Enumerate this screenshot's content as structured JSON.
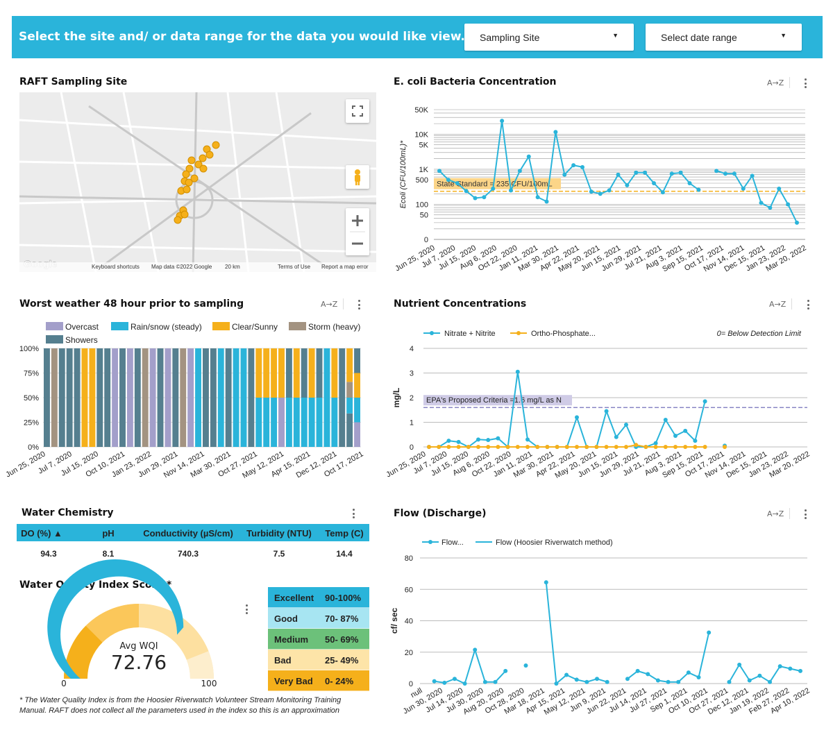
{
  "banner": {
    "prompt": "Select the site and/ or data range for the data you would like view.",
    "site_dropdown": "Sampling Site",
    "date_dropdown": "Select date range"
  },
  "map_panel": {
    "title": "RAFT Sampling Site",
    "attribution": [
      "Keyboard shortcuts",
      "Map data ©2022 Google",
      "20 km",
      "Terms of Use",
      "Report a map error"
    ],
    "logo": "Google",
    "icons": [
      "fullscreen-icon",
      "pegman-icon",
      "zoom-in-icon",
      "zoom-out-icon"
    ]
  },
  "ecoli": {
    "title": "E. coli Bacteria Concentration",
    "sort_icon": "A→Z",
    "chart_data": {
      "type": "line",
      "ylabel": "Ecoli (CFU/100mL)*",
      "y_scale": "log",
      "y_ticks": [
        "50K",
        "10K",
        "5K",
        "1K",
        "500",
        "100",
        "50",
        "0"
      ],
      "x_ticks": [
        "Jun 25, 2020",
        "Jul 7, 2020",
        "Jul 15, 2020",
        "Aug 6, 2020",
        "Oct 22, 2020",
        "Jan 11, 2021",
        "Mar 30, 2021",
        "Apr 22, 2021",
        "May 20, 2021",
        "Jun 15, 2021",
        "Jun 29, 2021",
        "Jul 21, 2021",
        "Aug 3, 2021",
        "Sep 15, 2021",
        "Oct 17, 2021",
        "Nov 14, 2021",
        "Dec 15, 2021",
        "Jan 23, 2022",
        "Mar 20, 2022"
      ],
      "reference_label": "State Standard = 235 CFU/100mL",
      "reference_value": 235,
      "series": [
        {
          "values": [
            900,
            500,
            400,
            240,
            150,
            160,
            280,
            24000,
            250,
            900,
            2300,
            160,
            120,
            11500,
            700,
            1300,
            1150,
            230,
            200,
            250,
            700,
            350,
            800,
            800,
            400,
            220,
            750,
            800,
            400,
            260,
            null,
            900,
            750,
            750,
            280,
            650,
            110,
            80,
            280,
            100,
            30
          ]
        }
      ]
    }
  },
  "weather": {
    "title": "Worst weather 48 hour prior to sampling",
    "sort_icon": "A→Z",
    "legend": [
      {
        "label": "Overcast",
        "color": "#a39fca"
      },
      {
        "label": "Rain/snow (steady)",
        "color": "#2ab4da"
      },
      {
        "label": "Clear/Sunny",
        "color": "#f5b01b"
      },
      {
        "label": "Storm (heavy)",
        "color": "#a39381"
      },
      {
        "label": "Showers",
        "color": "#557f8f"
      }
    ],
    "chart_data": {
      "type": "bar",
      "stacked": true,
      "y_ticks": [
        "100%",
        "75%",
        "50%",
        "25%",
        "0%"
      ],
      "x_ticks": [
        "Jun 25, 2020",
        "Jul 7, 2020",
        "Jul 15, 2020",
        "Oct 10, 2021",
        "Jan 23, 2022",
        "Jun 29, 2021",
        "Nov 14, 2021",
        "Mar 30, 2021",
        "Oct 27, 2021",
        "May 12, 2021",
        "Apr 15, 2021",
        "Dec 12, 2021",
        "Oct 17, 2021"
      ],
      "bars": [
        "Showers",
        "Storm (heavy)",
        "Showers",
        "Showers",
        "Showers",
        "Clear/Sunny",
        "Clear/Sunny",
        "Showers",
        "Showers",
        "Overcast",
        "Showers",
        "Overcast",
        "Showers",
        "Storm (heavy)",
        "Overcast",
        "Showers",
        "Overcast",
        "Showers",
        "Storm (heavy)",
        "Overcast",
        "Rain/snow (steady)",
        "Showers",
        "Showers",
        "Rain/snow (steady)",
        "Showers",
        "Rain/snow (steady)",
        "Rain/snow (steady)",
        "Showers",
        "Clear/Sunny",
        "Rain/snow (steady)",
        "Clear/Sunny",
        "Rain/snow (steady)",
        "Rain/snow (steady)",
        "Overcast",
        "Rain/snow (steady)",
        "Rain/snow (steady)",
        "Rain/snow (steady)",
        "Rain/snow (steady)",
        "Showers",
        "Showers",
        "Rain/snow (steady)",
        "Rain/snow (steady)"
      ],
      "mixed_bars": [
        {
          "index": 28,
          "stack": [
            {
              "c": "Rain/snow (steady)",
              "v": 50
            },
            {
              "c": "Clear/Sunny",
              "v": 50
            }
          ]
        },
        {
          "index": 29,
          "stack": [
            {
              "c": "Rain/snow (steady)",
              "v": 50
            },
            {
              "c": "Clear/Sunny",
              "v": 50
            }
          ]
        },
        {
          "index": 30,
          "stack": [
            {
              "c": "Rain/snow (steady)",
              "v": 50
            },
            {
              "c": "Clear/Sunny",
              "v": 50
            }
          ]
        },
        {
          "index": 31,
          "stack": [
            {
              "c": "Overcast",
              "v": 50
            },
            {
              "c": "Clear/Sunny",
              "v": 50
            }
          ]
        },
        {
          "index": 32,
          "stack": [
            {
              "c": "Rain/snow (steady)",
              "v": 50
            },
            {
              "c": "Showers",
              "v": 50
            }
          ]
        },
        {
          "index": 33,
          "stack": [
            {
              "c": "Rain/snow (steady)",
              "v": 50
            },
            {
              "c": "Clear/Sunny",
              "v": 50
            }
          ]
        },
        {
          "index": 34,
          "stack": [
            {
              "c": "Rain/snow (steady)",
              "v": 50
            },
            {
              "c": "Showers",
              "v": 50
            }
          ]
        },
        {
          "index": 35,
          "stack": [
            {
              "c": "Rain/snow (steady)",
              "v": 50
            },
            {
              "c": "Clear/Sunny",
              "v": 50
            }
          ]
        },
        {
          "index": 36,
          "stack": [
            {
              "c": "Rain/snow (steady)",
              "v": 50
            },
            {
              "c": "Showers",
              "v": 50
            }
          ]
        },
        {
          "index": 37,
          "stack": [
            {
              "c": "Rain/snow (steady)",
              "v": 100
            }
          ]
        },
        {
          "index": 38,
          "stack": [
            {
              "c": "Rain/snow (steady)",
              "v": 50
            },
            {
              "c": "Clear/Sunny",
              "v": 50
            }
          ]
        },
        {
          "index": 39,
          "stack": [
            {
              "c": "Showers",
              "v": 100
            }
          ]
        },
        {
          "index": 40,
          "stack": [
            {
              "c": "Showers",
              "v": 34
            },
            {
              "c": "Rain/snow (steady)",
              "v": 16
            },
            {
              "c": "Storm (heavy)",
              "v": 16
            },
            {
              "c": "Clear/Sunny",
              "v": 34
            }
          ]
        },
        {
          "index": 41,
          "stack": [
            {
              "c": "Overcast",
              "v": 25
            },
            {
              "c": "Rain/snow (steady)",
              "v": 25
            },
            {
              "c": "Clear/Sunny",
              "v": 25
            },
            {
              "c": "Showers",
              "v": 25
            }
          ]
        }
      ]
    }
  },
  "nutrients": {
    "title": "Nutrient Concentrations",
    "sort_icon": "A→Z",
    "note": "0= Below Detection Limit",
    "chart_data": {
      "type": "line",
      "ylabel": "mg/L",
      "ylim": [
        0,
        4
      ],
      "y_ticks": [
        "4",
        "3",
        "2",
        "1",
        "0"
      ],
      "x_ticks": [
        "Jun 25, 2020",
        "Jul 7, 2020",
        "Jul 15, 2020",
        "Aug 6, 2020",
        "Oct 22, 2020",
        "Jan 11, 2021",
        "Mar 30, 2021",
        "Apr 22, 2021",
        "May 20, 2021",
        "Jun 15, 2021",
        "Jun 29, 2021",
        "Jul 21, 2021",
        "Aug 3, 2021",
        "Sep 15, 2021",
        "Oct 17, 2021",
        "Nov 14, 2021",
        "Dec 15, 2021",
        "Jan 23, 2022",
        "Mar 20, 2022"
      ],
      "reference_label": "EPA's Proposed Criteria =1.6 mg/L as N",
      "reference_value": 1.6,
      "series": [
        {
          "name": "Nitrate + Nitrite",
          "color": "#2ab4da",
          "values": [
            0,
            0,
            0.25,
            0.2,
            0,
            0.3,
            0.28,
            0.35,
            0,
            3.05,
            0.3,
            0,
            0,
            0,
            0,
            1.2,
            0,
            0,
            1.45,
            0.4,
            0.9,
            0,
            0,
            0.15,
            1.1,
            0.45,
            0.65,
            0.25,
            1.85,
            null,
            0.05
          ]
        },
        {
          "name": "Ortho-Phosphate...",
          "color": "#f5b01b",
          "values": [
            0,
            0,
            0,
            0,
            0,
            0,
            0,
            0,
            0,
            0,
            0,
            0,
            0,
            0,
            0,
            0,
            0,
            0,
            0,
            0,
            0,
            0.08,
            0,
            0,
            0,
            0,
            0,
            0,
            0,
            null,
            0
          ]
        }
      ]
    }
  },
  "water_chemistry": {
    "title": "Water Chemistry",
    "columns": [
      "DO (%) ▲",
      "pH",
      "Conductivity (µS/cm)",
      "Turbidity (NTU)",
      "Temp (C)"
    ],
    "row": [
      "94.3",
      "8.1",
      "740.3",
      "7.5",
      "14.4"
    ]
  },
  "wqi": {
    "title": "Water Quality Index Score *",
    "label": "Avg WQI",
    "value": "72.76",
    "score": 72.76,
    "min": "0",
    "max": "100",
    "ranges": [
      {
        "label": "Excellent",
        "range": "90-100%",
        "color": "#2ab4da"
      },
      {
        "label": "Good",
        "range": "70- 87%",
        "color": "#a7e5f2"
      },
      {
        "label": "Medium",
        "range": "50- 69%",
        "color": "#6cc17a"
      },
      {
        "label": "Bad",
        "range": "25- 49%",
        "color": "#fde4a8"
      },
      {
        "label": "Very Bad",
        "range": "0- 24%",
        "color": "#f5b01b"
      }
    ],
    "footnote": "* The Water Quality Index is from the Hoosier Riverwatch Volunteer Stream Monitoring Training Manual. RAFT does not collect all the parameters used in the index so this is an approximation"
  },
  "flow": {
    "title": "Flow (Discharge)",
    "sort_icon": "A→Z",
    "chart_data": {
      "type": "line",
      "ylabel": "cf/ sec",
      "ylim": [
        0,
        80
      ],
      "y_ticks": [
        "80",
        "60",
        "40",
        "20",
        "0"
      ],
      "x_ticks": [
        "null",
        "Jun 30, 2020",
        "Jul 14, 2020",
        "Jul 30, 2020",
        "Aug 20, 2020",
        "Oct 28, 2020",
        "Mar 18, 2021",
        "Apr 15, 2021",
        "May 12, 2021",
        "Jun 9, 2021",
        "Jun 22, 2021",
        "Jul 14, 2021",
        "Jul 27, 2021",
        "Sep 1, 2021",
        "Oct 10, 2021",
        "Oct 27, 2021",
        "Dec 12, 2021",
        "Jan 19, 2022",
        "Feb 27, 2022",
        "Apr 10, 2022"
      ],
      "series": [
        {
          "name": "Flow...",
          "color": "#2ab4da",
          "values": [
            null,
            1.5,
            0.5,
            3,
            0,
            21.5,
            1,
            1,
            8,
            null,
            11.5,
            null,
            64.5,
            0,
            5.5,
            2.5,
            1,
            3,
            1,
            null,
            3,
            8,
            6,
            2,
            1,
            1,
            7,
            4,
            32.5,
            null,
            1,
            12,
            2,
            5,
            1,
            11,
            9.5,
            8
          ]
        },
        {
          "name": "Flow (Hoosier Riverwatch method)",
          "color": "#2ab4da"
        }
      ]
    }
  }
}
